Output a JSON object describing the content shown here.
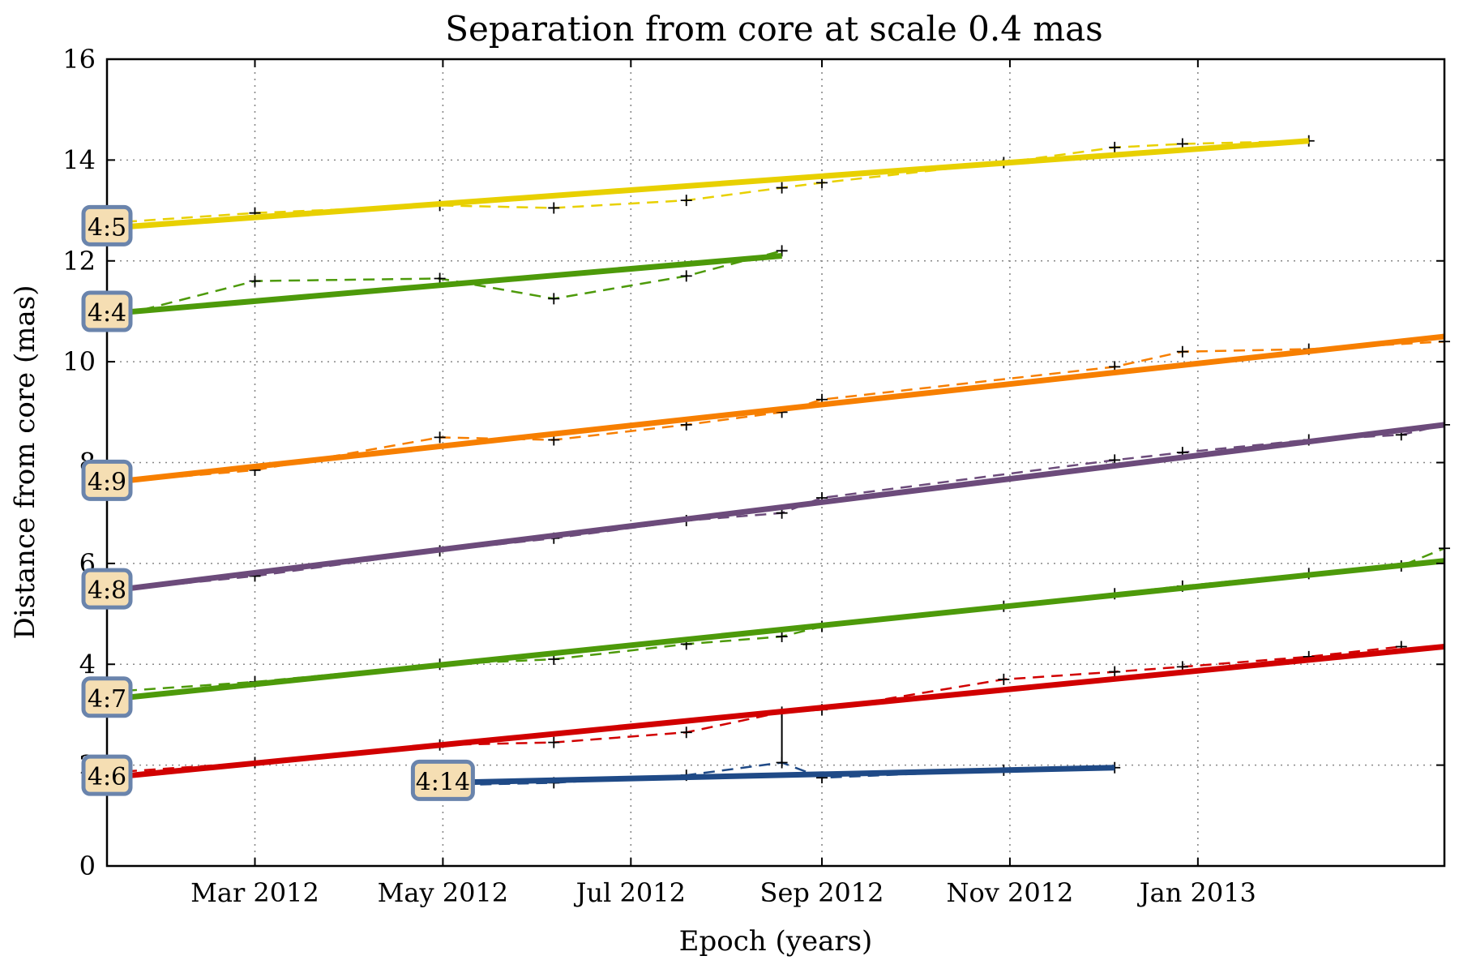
{
  "chart_data": {
    "type": "line",
    "title": "Separation from core at scale 0.4 mas",
    "xlabel": "Epoch (years)",
    "ylabel": "Distance from core (mas)",
    "x_ticks": [
      "Mar 2012",
      "May 2012",
      "Jul 2012",
      "Sep 2012",
      "Nov 2012",
      "Jan 2013"
    ],
    "x_tick_dates": [
      "2012-03-01",
      "2012-05-01",
      "2012-07-01",
      "2012-09-01",
      "2012-11-01",
      "2013-01-01"
    ],
    "xlim": [
      "2012-01-13",
      "2013-03-22"
    ],
    "y_ticks": [
      0,
      2,
      4,
      6,
      8,
      10,
      12,
      14,
      16
    ],
    "ylim": [
      0,
      16
    ],
    "grid": true,
    "series": [
      {
        "name": "4:5",
        "color": "#e8d000",
        "fit": [
          [
            "2012-01-13",
            12.65
          ],
          [
            "2013-02-06",
            14.38
          ]
        ],
        "points": [
          [
            "2012-01-13",
            12.75
          ],
          [
            "2012-03-01",
            12.95
          ],
          [
            "2012-04-30",
            13.1
          ],
          [
            "2012-06-06",
            13.05
          ],
          [
            "2012-07-19",
            13.2
          ],
          [
            "2012-08-19",
            13.45
          ],
          [
            "2012-09-01",
            13.55
          ],
          [
            "2012-10-30",
            13.95
          ],
          [
            "2012-12-05",
            14.25
          ],
          [
            "2012-12-27",
            14.32
          ],
          [
            "2013-02-06",
            14.38
          ]
        ]
      },
      {
        "name": "4:4",
        "color": "#4d9a0a",
        "fit": [
          [
            "2012-01-13",
            10.95
          ],
          [
            "2012-08-19",
            12.1
          ]
        ],
        "points": [
          [
            "2012-01-13",
            10.85
          ],
          [
            "2012-03-01",
            11.6
          ],
          [
            "2012-04-30",
            11.65
          ],
          [
            "2012-06-06",
            11.25
          ],
          [
            "2012-07-19",
            11.7
          ],
          [
            "2012-08-19",
            12.2
          ]
        ]
      },
      {
        "name": "4:9",
        "color": "#f77f00",
        "fit": [
          [
            "2012-01-13",
            7.6
          ],
          [
            "2013-03-22",
            10.5
          ]
        ],
        "points": [
          [
            "2012-01-13",
            7.6
          ],
          [
            "2012-03-01",
            7.85
          ],
          [
            "2012-04-30",
            8.5
          ],
          [
            "2012-06-06",
            8.45
          ],
          [
            "2012-07-19",
            8.75
          ],
          [
            "2012-08-19",
            9.0
          ],
          [
            "2012-09-01",
            9.25
          ],
          [
            "2012-12-05",
            9.9
          ],
          [
            "2012-12-27",
            10.2
          ],
          [
            "2013-02-06",
            10.25
          ],
          [
            "2013-03-22",
            10.4
          ]
        ]
      },
      {
        "name": "4:8",
        "color": "#6c4b7b",
        "fit": [
          [
            "2012-01-13",
            5.45
          ],
          [
            "2013-03-22",
            8.75
          ]
        ],
        "points": [
          [
            "2012-01-13",
            5.45
          ],
          [
            "2012-03-01",
            5.75
          ],
          [
            "2012-04-30",
            6.25
          ],
          [
            "2012-06-06",
            6.5
          ],
          [
            "2012-07-19",
            6.85
          ],
          [
            "2012-08-19",
            7.0
          ],
          [
            "2012-09-01",
            7.3
          ],
          [
            "2012-12-05",
            8.05
          ],
          [
            "2012-12-27",
            8.2
          ],
          [
            "2013-02-06",
            8.45
          ],
          [
            "2013-03-08",
            8.55
          ],
          [
            "2013-03-22",
            8.75
          ]
        ]
      },
      {
        "name": "4:7",
        "color": "#4d9a0a",
        "fit": [
          [
            "2012-01-13",
            3.3
          ],
          [
            "2013-03-22",
            6.05
          ]
        ],
        "points": [
          [
            "2012-01-13",
            3.45
          ],
          [
            "2012-03-01",
            3.65
          ],
          [
            "2012-04-30",
            4.0
          ],
          [
            "2012-06-06",
            4.1
          ],
          [
            "2012-07-19",
            4.4
          ],
          [
            "2012-08-19",
            4.55
          ],
          [
            "2012-09-01",
            4.75
          ],
          [
            "2012-10-30",
            5.15
          ],
          [
            "2012-12-05",
            5.4
          ],
          [
            "2012-12-27",
            5.55
          ],
          [
            "2013-02-06",
            5.8
          ],
          [
            "2013-03-08",
            5.95
          ],
          [
            "2013-03-22",
            6.3
          ]
        ]
      },
      {
        "name": "4:6",
        "color": "#d10000",
        "fit": [
          [
            "2012-01-13",
            1.75
          ],
          [
            "2013-03-22",
            4.35
          ]
        ],
        "points": [
          [
            "2012-01-13",
            1.85
          ],
          [
            "2012-03-01",
            2.05
          ],
          [
            "2012-04-30",
            2.4
          ],
          [
            "2012-06-06",
            2.45
          ],
          [
            "2012-07-19",
            2.65
          ],
          [
            "2012-08-19",
            3.05
          ],
          [
            "2012-09-01",
            3.1
          ],
          [
            "2012-10-30",
            3.7
          ],
          [
            "2012-12-05",
            3.85
          ],
          [
            "2012-12-27",
            3.95
          ],
          [
            "2013-02-06",
            4.15
          ],
          [
            "2013-03-08",
            4.35
          ]
        ]
      },
      {
        "name": "4:14",
        "color": "#1f4a87",
        "fit": [
          [
            "2012-05-01",
            1.65
          ],
          [
            "2012-12-05",
            1.95
          ]
        ],
        "points": [
          [
            "2012-05-01",
            1.6
          ],
          [
            "2012-06-06",
            1.65
          ],
          [
            "2012-07-19",
            1.8
          ],
          [
            "2012-08-19",
            2.05
          ],
          [
            "2012-09-01",
            1.75
          ],
          [
            "2012-10-30",
            1.9
          ],
          [
            "2012-12-05",
            1.95
          ]
        ]
      }
    ],
    "error_bar": {
      "x": "2012-08-19",
      "y_low": 2.05,
      "y_high": 3.05
    }
  }
}
